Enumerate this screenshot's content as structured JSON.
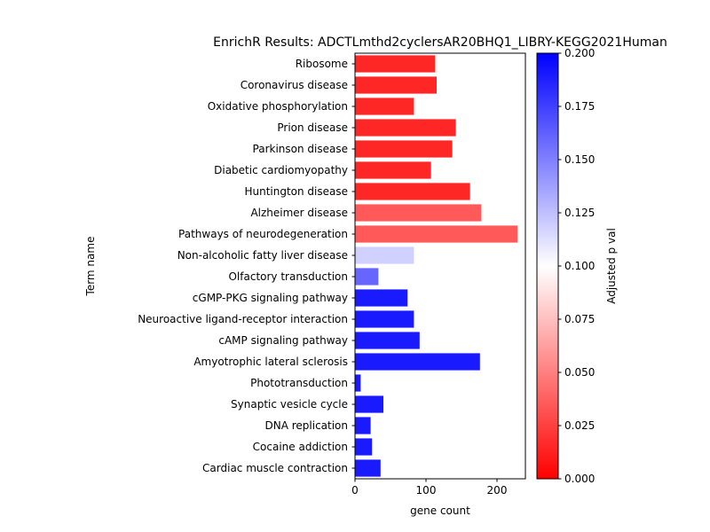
{
  "chart_data": {
    "type": "bar",
    "orientation": "horizontal",
    "title": "EnrichR Results: ADCTLmthd2cyclersAR20BHQ1_LIBRY-KEGG2021Human",
    "xlabel": "gene count",
    "ylabel": "Term name",
    "xlim": [
      0,
      240
    ],
    "xticks": [
      0,
      100,
      200
    ],
    "grid": false,
    "categories": [
      "Ribosome",
      "Coronavirus disease",
      "Oxidative phosphorylation",
      "Prion disease",
      "Parkinson disease",
      "Diabetic cardiomyopathy",
      "Huntington disease",
      "Alzheimer disease",
      "Pathways of neurodegeneration",
      "Non-alcoholic fatty liver disease",
      "Olfactory transduction",
      "cGMP-PKG signaling pathway",
      "Neuroactive ligand-receptor interaction",
      "cAMP signaling pathway",
      "Amyotrophic lateral sclerosis",
      "Phototransduction",
      "Synaptic vesicle cycle",
      "DNA replication",
      "Cocaine addiction",
      "Cardiac muscle contraction"
    ],
    "values": [
      113,
      115,
      83,
      142,
      137,
      107,
      162,
      178,
      229,
      83,
      33,
      74,
      83,
      91,
      176,
      8,
      40,
      22,
      24,
      36
    ],
    "adjusted_p": [
      0.015,
      0.015,
      0.015,
      0.015,
      0.015,
      0.015,
      0.015,
      0.035,
      0.035,
      0.118,
      0.16,
      0.19,
      0.19,
      0.19,
      0.19,
      0.19,
      0.19,
      0.19,
      0.19,
      0.19
    ],
    "colorbar": {
      "label": "Adjusted p val",
      "range": [
        0,
        0.2
      ],
      "ticks": [
        "0.000",
        "0.025",
        "0.050",
        "0.075",
        "0.100",
        "0.125",
        "0.150",
        "0.175",
        "0.200"
      ],
      "colormap": "bwr_r",
      "low_color": "#ff0000",
      "mid_color": "#ffffff",
      "high_color": "#0000ff"
    }
  }
}
